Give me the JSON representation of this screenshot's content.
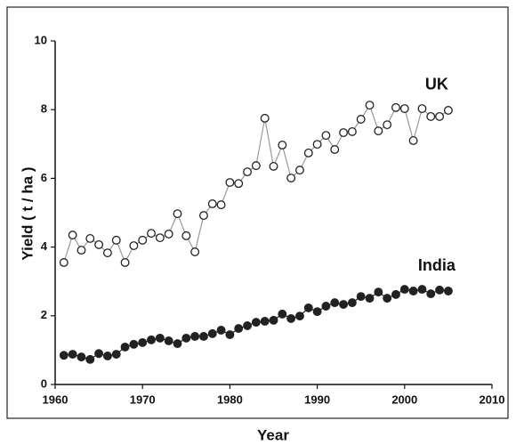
{
  "chart_data": {
    "type": "line",
    "xlabel": "Year",
    "ylabel": "Yield ( t / ha )",
    "xlim": [
      1960,
      2010
    ],
    "xticks": [
      1960,
      1970,
      1980,
      1990,
      2000,
      2010
    ],
    "ylim": [
      0,
      10
    ],
    "yticks": [
      0,
      2,
      4,
      6,
      8,
      10
    ],
    "grid": false,
    "x": [
      1961,
      1962,
      1963,
      1964,
      1965,
      1966,
      1967,
      1968,
      1969,
      1970,
      1971,
      1972,
      1973,
      1974,
      1975,
      1976,
      1977,
      1978,
      1979,
      1980,
      1981,
      1982,
      1983,
      1984,
      1985,
      1986,
      1987,
      1988,
      1989,
      1990,
      1991,
      1992,
      1993,
      1994,
      1995,
      1996,
      1997,
      1998,
      1999,
      2000,
      2001,
      2002,
      2003,
      2004,
      2005
    ],
    "series": [
      {
        "name": "UK",
        "color": "#ffffff",
        "line_color": "#999999",
        "values": [
          3.55,
          4.35,
          3.91,
          4.25,
          4.07,
          3.83,
          4.2,
          3.55,
          4.04,
          4.2,
          4.4,
          4.27,
          4.38,
          4.97,
          4.33,
          3.86,
          4.92,
          5.26,
          5.23,
          5.88,
          5.85,
          6.19,
          6.37,
          7.75,
          6.35,
          6.97,
          6.01,
          6.24,
          6.74,
          6.99,
          7.25,
          6.84,
          7.33,
          7.36,
          7.72,
          8.13,
          7.38,
          7.56,
          8.06,
          8.03,
          7.1,
          8.03,
          7.8,
          7.8,
          7.98
        ]
      },
      {
        "name": "India",
        "color": "#222222",
        "line_color": "#222222",
        "values": [
          0.85,
          0.88,
          0.8,
          0.73,
          0.9,
          0.83,
          0.88,
          1.09,
          1.17,
          1.22,
          1.3,
          1.35,
          1.27,
          1.19,
          1.35,
          1.4,
          1.4,
          1.48,
          1.58,
          1.45,
          1.63,
          1.71,
          1.81,
          1.84,
          1.87,
          2.05,
          1.92,
          1.99,
          2.23,
          2.12,
          2.28,
          2.38,
          2.33,
          2.38,
          2.56,
          2.51,
          2.69,
          2.51,
          2.62,
          2.77,
          2.72,
          2.77,
          2.64,
          2.75,
          2.72
        ]
      }
    ]
  }
}
